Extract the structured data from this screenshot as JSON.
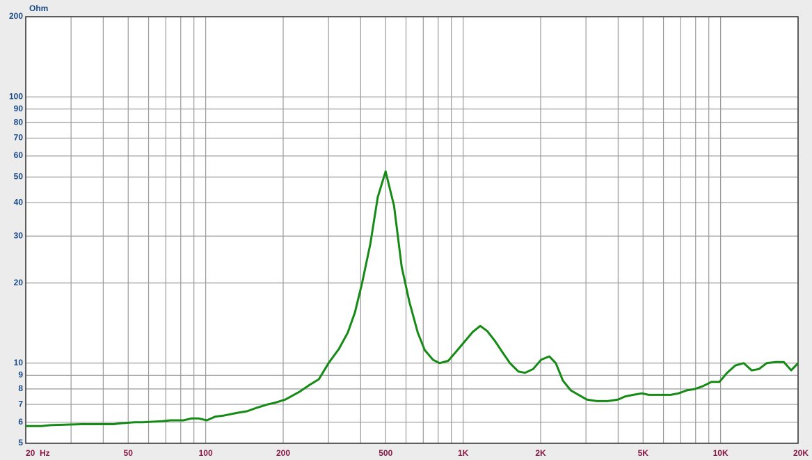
{
  "chart_data": {
    "type": "line",
    "y_label": "Ohm",
    "log_x": true,
    "log_y": true,
    "grid": true,
    "color": "#158a15",
    "x": [
      20,
      23,
      25,
      33,
      36,
      44,
      47,
      53,
      57,
      68,
      73,
      82,
      88,
      94,
      101,
      109,
      117,
      132,
      145,
      158,
      174,
      186,
      204,
      231,
      254,
      275,
      300,
      329,
      356,
      380,
      405,
      436,
      466,
      500,
      539,
      577,
      618,
      667,
      709,
      763,
      810,
      875,
      943,
      1010,
      1090,
      1165,
      1240,
      1330,
      1420,
      1520,
      1640,
      1740,
      1870,
      2010,
      2160,
      2290,
      2440,
      2620,
      2810,
      3020,
      3310,
      3640,
      4000,
      4260,
      4580,
      4950,
      5260,
      5960,
      6400,
      6870,
      7380,
      7960,
      8550,
      9210,
      9900,
      10600,
      11400,
      12300,
      13200,
      14100,
      15100,
      16400,
      17600,
      18800,
      20000
    ],
    "values": [
      5.8,
      5.8,
      5.85,
      5.9,
      5.9,
      5.9,
      5.95,
      6.0,
      6.0,
      6.05,
      6.1,
      6.1,
      6.2,
      6.2,
      6.1,
      6.3,
      6.35,
      6.5,
      6.6,
      6.8,
      7.0,
      7.1,
      7.3,
      7.8,
      8.3,
      8.7,
      10,
      11.3,
      13,
      15.5,
      20,
      28,
      42,
      52.5,
      39,
      23,
      17,
      13,
      11.2,
      10.3,
      10,
      10.2,
      11.1,
      12,
      13.1,
      13.8,
      13.2,
      12.1,
      11,
      10,
      9.3,
      9.2,
      9.5,
      10.3,
      10.6,
      10,
      8.6,
      7.9,
      7.6,
      7.3,
      7.2,
      7.2,
      7.3,
      7.5,
      7.6,
      7.7,
      7.6,
      7.6,
      7.6,
      7.7,
      7.9,
      8,
      8.2,
      8.5,
      8.5,
      9.2,
      9.8,
      10,
      9.4,
      9.5,
      10,
      10.1,
      10.1,
      9.4,
      10
    ],
    "xlim": [
      20,
      20000
    ],
    "ylim": [
      5,
      200
    ],
    "xticks": [
      {
        "value": 20,
        "label": "20  Hz"
      },
      50,
      100,
      200,
      500,
      {
        "value": 1000,
        "label": "1K"
      },
      {
        "value": 2000,
        "label": "2K"
      },
      {
        "value": 5000,
        "label": "5K"
      },
      {
        "value": 10000,
        "label": "10K"
      },
      {
        "value": 20000,
        "label": "20K"
      }
    ],
    "x_minor_grid": [
      30,
      40,
      60,
      70,
      80,
      90,
      300,
      400,
      600,
      700,
      800,
      900,
      3000,
      4000,
      6000,
      7000,
      8000,
      9000
    ],
    "yticks": [
      5,
      6,
      7,
      8,
      9,
      10,
      20,
      30,
      40,
      50,
      60,
      70,
      80,
      90,
      100,
      200
    ]
  }
}
